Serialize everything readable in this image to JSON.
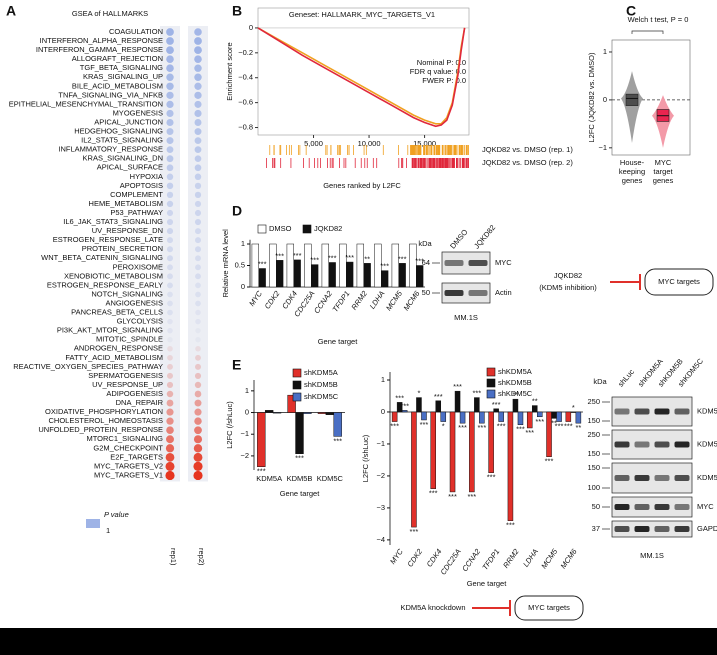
{
  "panels": [
    "A",
    "B",
    "C",
    "D",
    "E"
  ],
  "chart_data": [
    {
      "type": "dot",
      "title": "GSEA of HALLMARKS",
      "categories": [
        "COAGULATION",
        "INTERFERON_ALPHA_RESPONSE",
        "INTERFERON_GAMMA_RESPONSE",
        "ALLOGRAFT_REJECTION",
        "TGF_BETA_SIGNALING",
        "KRAS_SIGNALING_UP",
        "BILE_ACID_METABOLISM",
        "TNFA_SIGNALING_VIA_NFKB",
        "EPITHELIAL_MESENCHYMAL_TRANSITION",
        "MYOGENESIS",
        "APICAL_JUNCTION",
        "HEDGEHOG_SIGNALING",
        "IL2_STAT5_SIGNALING",
        "INFLAMMATORY_RESPONSE",
        "KRAS_SIGNALING_DN",
        "APICAL_SURFACE",
        "HYPOXIA",
        "APOPTOSIS",
        "COMPLEMENT",
        "HEME_METABOLISM",
        "P53_PATHWAY",
        "IL6_JAK_STAT3_SIGNALING",
        "UV_RESPONSE_DN",
        "ESTROGEN_RESPONSE_LATE",
        "PROTEIN_SECRETION",
        "WNT_BETA_CATENIN_SIGNALING",
        "PEROXISOME",
        "XENOBIOTIC_METABOLISM",
        "ESTROGEN_RESPONSE_EARLY",
        "NOTCH_SIGNALING",
        "ANGIOGENESIS",
        "PANCREAS_BETA_CELLS",
        "GLYCOLYSIS",
        "PI3K_AKT_MTOR_SIGNALING",
        "MITOTIC_SPINDLE",
        "ANDROGEN_RESPONSE",
        "FATTY_ACID_METABOLISM",
        "REACTIVE_OXYGEN_SPECIES_PATHWAY",
        "SPERMATOGENESIS",
        "UV_RESPONSE_UP",
        "ADIPOGENESIS",
        "DNA_REPAIR",
        "OXIDATIVE_PHOSPHORYLATION",
        "CHOLESTEROL_HOMEOSTASIS",
        "UNFOLDED_PROTEIN_RESPONSE",
        "MTORC1_SIGNALING",
        "G2M_CHECKPOINT",
        "E2F_TARGETS",
        "MYC_TARGETS_V2",
        "MYC_TARGETS_V1"
      ],
      "series": [
        {
          "name": "rep1)",
          "values": [
            -1.6,
            -1.6,
            -1.6,
            -1.5,
            -1.5,
            -1.4,
            -1.4,
            -1.3,
            -1.3,
            -1.2,
            -1.2,
            -1.1,
            -1.1,
            -1.0,
            -1.0,
            -0.9,
            -0.8,
            -0.8,
            -0.7,
            -0.7,
            -0.6,
            -0.6,
            -0.6,
            -0.5,
            -0.5,
            -0.5,
            -0.4,
            -0.4,
            -0.4,
            -0.3,
            -0.3,
            -0.3,
            -0.2,
            -0.2,
            -0.1,
            0.2,
            0.3,
            0.4,
            0.5,
            0.6,
            0.8,
            1.0,
            1.2,
            1.3,
            1.5,
            1.7,
            1.9,
            2.2,
            2.4,
            2.6
          ]
        },
        {
          "name": "rep2)",
          "values": [
            -1.5,
            -1.6,
            -1.6,
            -1.5,
            -1.4,
            -1.4,
            -1.3,
            -1.3,
            -1.2,
            -1.2,
            -1.1,
            -1.1,
            -1.0,
            -1.0,
            -0.9,
            -0.9,
            -0.8,
            -0.7,
            -0.7,
            -0.6,
            -0.6,
            -0.6,
            -0.5,
            -0.5,
            -0.5,
            -0.4,
            -0.4,
            -0.4,
            -0.3,
            -0.3,
            -0.3,
            -0.2,
            -0.2,
            -0.1,
            -0.1,
            0.2,
            0.4,
            0.5,
            0.6,
            0.7,
            0.9,
            1.1,
            1.2,
            1.4,
            1.6,
            1.8,
            2.0,
            2.3,
            2.5,
            2.6
          ]
        }
      ],
      "colors": [
        "#9eb3e6",
        "#e9eaf1",
        "#e6341f"
      ],
      "highlight": [
        48,
        49
      ],
      "highlight_color": "#d92323",
      "legend_title": "P value",
      "legend_ticks": [
        1
      ]
    },
    {
      "type": "line",
      "title": "Geneset: HALLMARK_MYC_TARGETS_V1",
      "ylabel": "Enrichment score",
      "xlabel": "Genes ranked by L2FC",
      "xlim": [
        0,
        19000
      ],
      "ylim": [
        -0.86,
        0.16
      ],
      "xticks": [
        {
          "value": 5000,
          "label": "5,000"
        },
        {
          "value": 10000,
          "label": "10,000"
        },
        {
          "value": 15000,
          "label": "15,000"
        }
      ],
      "yticks": [
        0,
        {
          "value": -0.2,
          "label": "−0.2"
        },
        {
          "value": -0.4,
          "label": "−0.4"
        },
        {
          "value": -0.6,
          "label": "−0.6"
        },
        {
          "value": -0.8,
          "label": "−0.8"
        }
      ],
      "x": [
        0,
        2000,
        4000,
        6000,
        8000,
        10000,
        12000,
        14000,
        15000,
        16000,
        16500,
        17000,
        17500,
        18000,
        18300,
        18600
      ],
      "series": [
        {
          "name": "JQKD82 vs. DMSO (rep. 1)",
          "color": "#f0a020",
          "values": [
            0,
            -0.1,
            -0.2,
            -0.3,
            -0.4,
            -0.5,
            -0.6,
            -0.7,
            -0.74,
            -0.77,
            -0.77,
            -0.72,
            -0.6,
            -0.35,
            -0.15,
            0
          ]
        },
        {
          "name": "JQKD82 vs. DMSO (rep. 2)",
          "color": "#e0283c",
          "values": [
            0,
            -0.11,
            -0.22,
            -0.32,
            -0.42,
            -0.52,
            -0.62,
            -0.72,
            -0.76,
            -0.79,
            -0.78,
            -0.74,
            -0.62,
            -0.38,
            -0.18,
            0
          ]
        }
      ],
      "annotations": [
        "Nominal P: 0.0",
        "FDR q value: 0.0",
        "FWER P: 0.0"
      ]
    },
    {
      "type": "box",
      "title": "Welch t test, P = 0",
      "ylabel": "L2FC (JQKD82 vs. DMSO)",
      "categories": [
        [
          "House-",
          "keeping",
          "genes"
        ],
        [
          "MYC",
          "target",
          "genes"
        ]
      ],
      "ylim": [
        -1.15,
        1.25
      ],
      "yticks": [
        1,
        0,
        {
          "value": -1,
          "label": "−1"
        }
      ],
      "stats": [
        {
          "min": -0.9,
          "q1": -0.12,
          "median": 0.03,
          "q3": 0.12,
          "max": 0.6
        },
        {
          "min": -1.0,
          "q1": -0.45,
          "median": -0.33,
          "q3": -0.2,
          "max": 0.1
        }
      ],
      "colors": [
        "#4d4d4d",
        "#e8254f"
      ],
      "violin_colors": [
        "#a0a0a0",
        "#f39aa8"
      ]
    },
    {
      "type": "bar",
      "ylabel": "Relative mRNA level",
      "xlabel": "Gene target",
      "categories": [
        "MYC",
        "CDK2",
        "CDK4",
        "CDC25A",
        "CCNA2",
        "TFDP1",
        "RRM2",
        "LDHA",
        "MCM5",
        "MCM6"
      ],
      "ylim": [
        0,
        1.1
      ],
      "yticks": [
        0,
        0.5,
        1
      ],
      "series": [
        {
          "name": "DMSO",
          "color": "#ffffff",
          "values": [
            1,
            1,
            1,
            1,
            1,
            1,
            1,
            1,
            1,
            1
          ]
        },
        {
          "name": "JQKD82",
          "color": "#111111",
          "values": [
            0.43,
            0.62,
            0.63,
            0.52,
            0.57,
            0.58,
            0.55,
            0.38,
            0.55,
            0.5
          ],
          "significance": [
            "***",
            "***",
            "***",
            "***",
            "***",
            "***",
            "**",
            "***",
            "***",
            "***"
          ]
        }
      ]
    },
    {
      "type": "bar",
      "ylabel": "L2FC (/shLuc)",
      "xlabel": "Gene target",
      "categories": [
        "KDM5A",
        "KDM5B",
        "KDM5C"
      ],
      "ylim": [
        -2.65,
        1.5
      ],
      "yticks": [
        1,
        0,
        {
          "value": -1,
          "label": "−1"
        },
        {
          "value": -2,
          "label": "−2"
        }
      ],
      "series": [
        {
          "name": "shKDM5A",
          "color": "#e0302a",
          "values": [
            -2.5,
            0.8,
            -0.05
          ],
          "significance": [
            "***",
            null,
            null
          ]
        },
        {
          "name": "shKDM5B",
          "color": "#111111",
          "values": [
            0.1,
            -1.9,
            -0.1
          ],
          "significance": [
            null,
            "***",
            null
          ]
        },
        {
          "name": "shKDM5C",
          "color": "#4a6fc4",
          "values": [
            0.0,
            -0.05,
            -1.1
          ],
          "significance": [
            null,
            null,
            "***"
          ]
        }
      ]
    },
    {
      "type": "bar",
      "ylabel": "L2FC (/shLuc)",
      "xlabel": "Gene target",
      "categories": [
        "MYC",
        "CDK2",
        "CDK4",
        "CDC25A",
        "CCNA2",
        "TFDP1",
        "RRM2",
        "LDHA",
        "MCM5",
        "MCM6"
      ],
      "ylim": [
        -4.16,
        1.25
      ],
      "yticks": [
        1,
        0,
        {
          "value": -1,
          "label": "−1"
        },
        {
          "value": -2,
          "label": "−2"
        },
        {
          "value": -3,
          "label": "−3"
        },
        {
          "value": -4,
          "label": "−4"
        }
      ],
      "series": [
        {
          "name": "shKDM5A",
          "color": "#e0302a",
          "values": [
            -0.3,
            -3.6,
            -2.4,
            -2.5,
            -2.5,
            -1.9,
            -3.4,
            -0.5,
            -1.4,
            -0.3
          ],
          "significance": [
            "***",
            "***",
            "***",
            "***",
            "***",
            "***",
            "***",
            "***",
            "***",
            "***"
          ]
        },
        {
          "name": "shKDM5B",
          "color": "#111111",
          "values": [
            0.3,
            0.45,
            0.35,
            0.65,
            0.45,
            0.1,
            0.4,
            0.2,
            -0.2,
            0.0
          ],
          "significance": [
            "***",
            "*",
            "***",
            "***",
            "***",
            "***",
            "**",
            "**",
            "**",
            "*"
          ]
        },
        {
          "name": "shKDM5C",
          "color": "#4a6fc4",
          "values": [
            0.05,
            -0.25,
            -0.3,
            -0.35,
            -0.35,
            -0.3,
            -0.4,
            -0.15,
            -0.3,
            -0.35
          ],
          "significance": [
            "***",
            "***",
            "*",
            "***",
            "***",
            "***",
            "***",
            "***",
            "***",
            "**"
          ]
        }
      ]
    }
  ],
  "blots": [
    {
      "kda": "kDa",
      "lanes": [
        "DMSO",
        "JQKD82"
      ],
      "bands": [
        {
          "name": "MYC",
          "markers": [
            64
          ]
        },
        {
          "name": "Actin",
          "markers": [
            50
          ]
        }
      ],
      "cell_line": "MM.1S"
    },
    {
      "kda": "kDa",
      "lanes": [
        "shLuc",
        "shKDM5A",
        "shKDM5B",
        "shKDM5C"
      ],
      "bands": [
        {
          "name": "KDM5A",
          "markers": [
            250,
            150
          ]
        },
        {
          "name": "KDM5B",
          "markers": [
            250,
            150
          ]
        },
        {
          "name": "KDM5C",
          "markers": [
            150,
            100
          ]
        },
        {
          "name": "MYC",
          "markers": [
            50
          ]
        },
        {
          "name": "GAPDH",
          "markers": [
            37
          ]
        }
      ],
      "cell_line": "MM.1S"
    }
  ],
  "diagrams": [
    {
      "source": [
        "JQKD82",
        "(KDM5 inhibition)"
      ],
      "target": "MYC targets"
    },
    {
      "source": [
        "KDM5A knockdown"
      ],
      "target": "MYC targets"
    }
  ]
}
